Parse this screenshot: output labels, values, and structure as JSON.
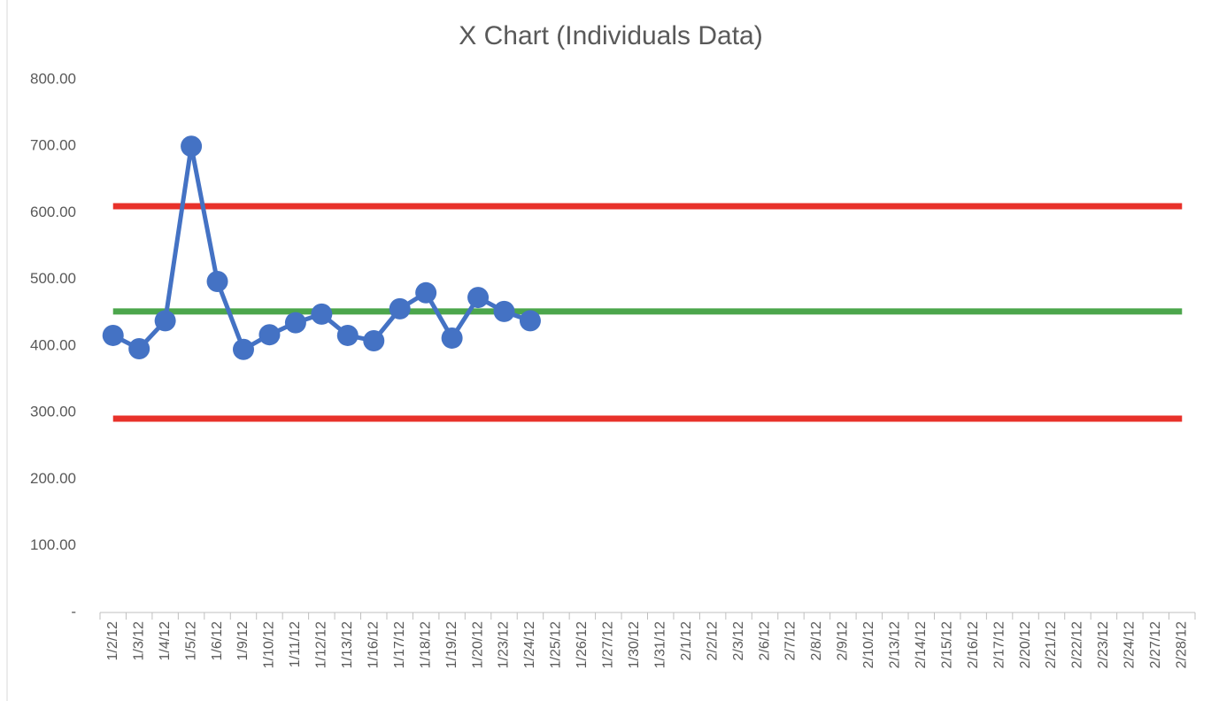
{
  "chart_data": {
    "type": "line",
    "title": "X Chart (Individuals Data)",
    "categories": [
      "1/2/12",
      "1/3/12",
      "1/4/12",
      "1/5/12",
      "1/6/12",
      "1/9/12",
      "1/10/12",
      "1/11/12",
      "1/12/12",
      "1/13/12",
      "1/16/12",
      "1/17/12",
      "1/18/12",
      "1/19/12",
      "1/20/12",
      "1/23/12",
      "1/24/12",
      "1/25/12",
      "1/26/12",
      "1/27/12",
      "1/30/12",
      "1/31/12",
      "2/1/12",
      "2/2/12",
      "2/3/12",
      "2/6/12",
      "2/7/12",
      "2/8/12",
      "2/9/12",
      "2/10/12",
      "2/13/12",
      "2/14/12",
      "2/15/12",
      "2/16/12",
      "2/17/12",
      "2/20/12",
      "2/21/12",
      "2/22/12",
      "2/23/12",
      "2/24/12",
      "2/27/12",
      "2/28/12"
    ],
    "series": [
      {
        "color": "#e8312a",
        "values": [
          610,
          610,
          610,
          610,
          610,
          610,
          610,
          610,
          610,
          610,
          610,
          610,
          610,
          610,
          610,
          610,
          610,
          610,
          610,
          610,
          610,
          610,
          610,
          610,
          610,
          610,
          610,
          610,
          610,
          610,
          610,
          610,
          610,
          610,
          610,
          610,
          610,
          610,
          610,
          610,
          610,
          610
        ]
      },
      {
        "color": "#e8312a",
        "values": [
          291,
          291,
          291,
          291,
          291,
          291,
          291,
          291,
          291,
          291,
          291,
          291,
          291,
          291,
          291,
          291,
          291,
          291,
          291,
          291,
          291,
          291,
          291,
          291,
          291,
          291,
          291,
          291,
          291,
          291,
          291,
          291,
          291,
          291,
          291,
          291,
          291,
          291,
          291,
          291,
          291,
          291
        ]
      },
      {
        "color": "#4ca64c",
        "values": [
          452,
          452,
          452,
          452,
          452,
          452,
          452,
          452,
          452,
          452,
          452,
          452,
          452,
          452,
          452,
          452,
          452,
          452,
          452,
          452,
          452,
          452,
          452,
          452,
          452,
          452,
          452,
          452,
          452,
          452,
          452,
          452,
          452,
          452,
          452,
          452,
          452,
          452,
          452,
          452,
          452,
          452
        ]
      },
      {
        "color": "#4472c4",
        "markers": true,
        "values": [
          416,
          396,
          438,
          700,
          497,
          395,
          417,
          435,
          448,
          416,
          408,
          456,
          480,
          412,
          473,
          452,
          438,
          null,
          null,
          null,
          null,
          null,
          null,
          null,
          null,
          null,
          null,
          null,
          null,
          null,
          null,
          null,
          null,
          null,
          null,
          null,
          null,
          null,
          null,
          null,
          null,
          null
        ]
      }
    ],
    "ylim": [
      0,
      800
    ],
    "yticks": [
      {
        "value": 0,
        "label": "-"
      },
      {
        "value": 100,
        "label": "100.00"
      },
      {
        "value": 200,
        "label": "200.00"
      },
      {
        "value": 300,
        "label": "300.00"
      },
      {
        "value": 400,
        "label": "400.00"
      },
      {
        "value": 500,
        "label": "500.00"
      },
      {
        "value": 600,
        "label": "600.00"
      },
      {
        "value": 700,
        "label": "700.00"
      },
      {
        "value": 800,
        "label": "800.00"
      }
    ]
  }
}
